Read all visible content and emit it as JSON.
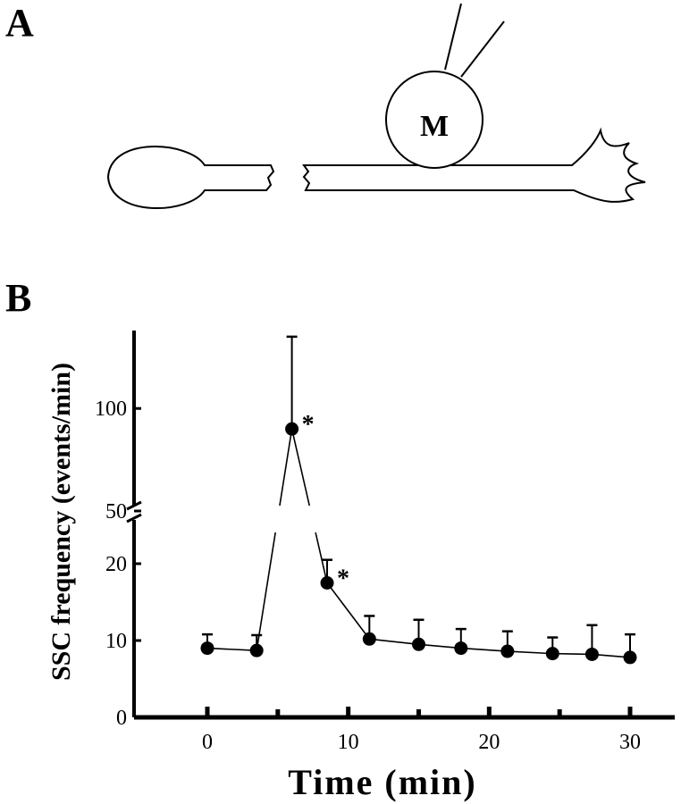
{
  "panels": {
    "a_label": "A",
    "b_label": "B"
  },
  "diagram": {
    "cell_label": "M"
  },
  "chart_data": {
    "type": "line",
    "xlabel": "Time (min)",
    "ylabel": "SSC frequency (events/min)",
    "x_ticks": [
      0,
      10,
      20,
      30
    ],
    "y_ticks_lower": [
      0,
      10,
      20
    ],
    "y_ticks_upper": [
      50,
      100
    ],
    "xlim": [
      -4.8,
      33
    ],
    "y_axis_break": {
      "lower_range": [
        0,
        25
      ],
      "upper_range": [
        50,
        138
      ]
    },
    "grid": false,
    "legend": "none",
    "series": [
      {
        "x": [
          0,
          3.5,
          6,
          8.5,
          11.5,
          15,
          18,
          21.3,
          24.5,
          27.3,
          30
        ],
        "y": [
          9,
          8.7,
          90,
          17.5,
          10.2,
          9.5,
          9,
          8.6,
          8.3,
          8.2,
          7.8
        ],
        "error_upper": [
          1.8,
          2.0,
          45,
          3.0,
          3.0,
          3.2,
          2.5,
          2.6,
          2.1,
          3.8,
          3.0
        ]
      }
    ],
    "annotations": [
      {
        "text": "*",
        "x": 6,
        "y": 90
      },
      {
        "text": "*",
        "x": 8.5,
        "y": 17.5
      }
    ],
    "colors": {
      "line": "#000000",
      "marker": "#000000"
    }
  }
}
